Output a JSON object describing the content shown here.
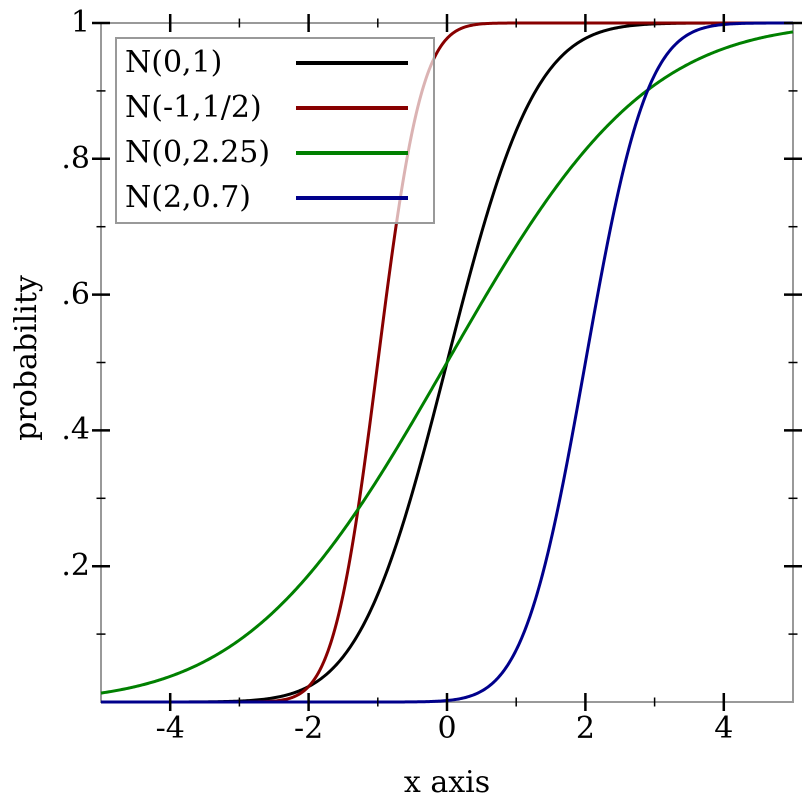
{
  "page": {
    "background": "#ffffff"
  },
  "chart_data": {
    "type": "line",
    "title": "",
    "xlabel": "x axis",
    "ylabel": "probability",
    "xlim": [
      -5,
      5
    ],
    "ylim": [
      0,
      1
    ],
    "grid": false,
    "legend_position": "top-left",
    "legend_background": "rgba(255,255,255,0.7)",
    "legend_border_color": "#999999",
    "axis_color": "#999999",
    "tick_color": "#000000",
    "x_ticks": {
      "major": [
        -4,
        -2,
        0,
        2,
        4
      ],
      "major_labels": [
        "-4",
        "-2",
        "0",
        "2",
        "4"
      ],
      "minor": [
        -3,
        -1,
        1,
        3
      ]
    },
    "y_ticks": {
      "major": [
        0.2,
        0.4,
        0.6,
        0.8,
        1
      ],
      "major_labels": [
        ".2",
        ".4",
        ".6",
        ".8",
        "1"
      ],
      "minor": [
        0.1,
        0.3,
        0.5,
        0.7,
        0.9
      ]
    },
    "series": [
      {
        "label": "N(0,1)",
        "curve": "normal-cdf",
        "mu": 0,
        "sigma": 1,
        "color": "#000000",
        "sample_x": [
          -5,
          -4,
          -3,
          -2,
          -1,
          0,
          1,
          2,
          3,
          4,
          5
        ],
        "sample_y": [
          3e-07,
          3e-05,
          0.00135,
          0.02275,
          0.15866,
          0.5,
          0.84134,
          0.97725,
          0.99865,
          0.99997,
          0.9999997
        ]
      },
      {
        "label": "N(-1,1/2)",
        "curve": "normal-cdf",
        "mu": -1,
        "sigma": 0.5,
        "color": "#880000",
        "sample_x": [
          -5,
          -4,
          -3,
          -2,
          -1,
          0,
          1,
          2,
          3,
          4,
          5
        ],
        "sample_y": [
          0,
          0,
          3e-05,
          0.02275,
          0.5,
          0.97725,
          0.99997,
          1,
          1,
          1,
          1
        ]
      },
      {
        "label": "N(0,2.25)",
        "curve": "normal-cdf",
        "mu": 0,
        "sigma": 2.25,
        "color": "#008000",
        "sample_x": [
          -5,
          -4,
          -3,
          -2,
          -1,
          0,
          1,
          2,
          3,
          4,
          5
        ],
        "sample_y": [
          0.0131,
          0.0377,
          0.0912,
          0.187,
          0.3284,
          0.5,
          0.6716,
          0.813,
          0.9088,
          0.9623,
          0.9869
        ]
      },
      {
        "label": "N(2,0.7)",
        "curve": "normal-cdf",
        "mu": 2,
        "sigma": 0.7,
        "color": "#00008b",
        "sample_x": [
          -5,
          -4,
          -3,
          -2,
          -1,
          0,
          1,
          2,
          3,
          4,
          5
        ],
        "sample_y": [
          0,
          0,
          0,
          0,
          1e-05,
          0.00214,
          0.07657,
          0.5,
          0.92343,
          0.99786,
          0.99999
        ]
      }
    ]
  }
}
